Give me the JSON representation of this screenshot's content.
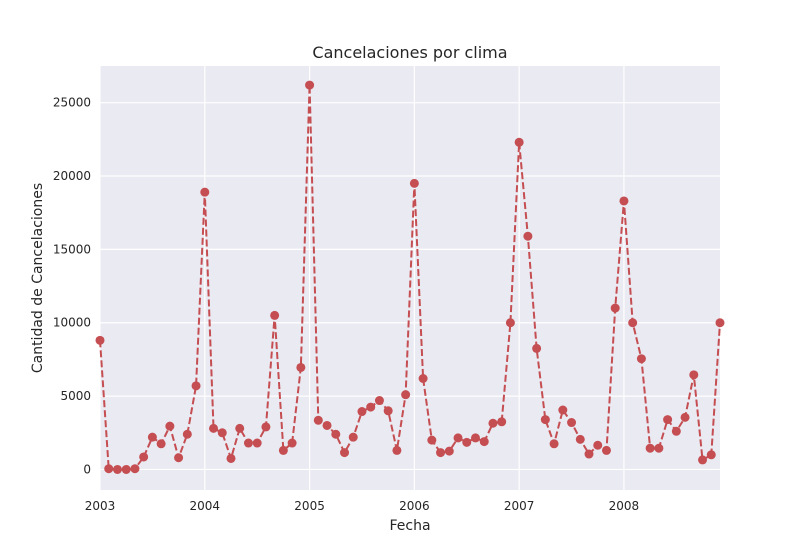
{
  "chart_data": {
    "type": "line",
    "title": "Cancelaciones por clima",
    "xlabel": "Fecha",
    "ylabel": "Cantidad de Cancelaciones",
    "x_axis": "date",
    "xlim": [
      "2003-01",
      "2008-12"
    ],
    "ylim": [
      -1400,
      27500
    ],
    "grid": true,
    "x_ticks": [
      {
        "date": "2003-01",
        "label": "2003"
      },
      {
        "date": "2004-01",
        "label": "2004"
      },
      {
        "date": "2005-01",
        "label": "2005"
      },
      {
        "date": "2006-01",
        "label": "2006"
      },
      {
        "date": "2007-01",
        "label": "2007"
      },
      {
        "date": "2008-01",
        "label": "2008"
      }
    ],
    "y_ticks": [
      0,
      5000,
      10000,
      15000,
      20000,
      25000
    ],
    "series": [
      {
        "color": "#c44e52",
        "linestyle": "dashed",
        "marker": "circle",
        "x": [
          "2003-01",
          "2003-02",
          "2003-03",
          "2003-04",
          "2003-05",
          "2003-06",
          "2003-07",
          "2003-08",
          "2003-09",
          "2003-10",
          "2003-11",
          "2003-12",
          "2004-01",
          "2004-02",
          "2004-03",
          "2004-04",
          "2004-05",
          "2004-06",
          "2004-07",
          "2004-08",
          "2004-09",
          "2004-10",
          "2004-11",
          "2004-12",
          "2005-01",
          "2005-02",
          "2005-03",
          "2005-04",
          "2005-05",
          "2005-06",
          "2005-07",
          "2005-08",
          "2005-09",
          "2005-10",
          "2005-11",
          "2005-12",
          "2006-01",
          "2006-02",
          "2006-03",
          "2006-04",
          "2006-05",
          "2006-06",
          "2006-07",
          "2006-08",
          "2006-09",
          "2006-10",
          "2006-11",
          "2006-12",
          "2007-01",
          "2007-02",
          "2007-03",
          "2007-04",
          "2007-05",
          "2007-06",
          "2007-07",
          "2007-08",
          "2007-09",
          "2007-10",
          "2007-11",
          "2007-12",
          "2008-01",
          "2008-02",
          "2008-03",
          "2008-04",
          "2008-05",
          "2008-06",
          "2008-07",
          "2008-08",
          "2008-09",
          "2008-10",
          "2008-11",
          "2008-12"
        ],
        "values": [
          8800,
          50,
          0,
          0,
          50,
          850,
          2200,
          1750,
          2950,
          800,
          2400,
          5700,
          18900,
          2800,
          2500,
          750,
          2800,
          1800,
          1800,
          2900,
          10500,
          1300,
          1800,
          6950,
          26200,
          3350,
          3000,
          2400,
          1150,
          2200,
          3950,
          4250,
          4700,
          4000,
          1300,
          5100,
          19500,
          6200,
          2000,
          1150,
          1250,
          2150,
          1850,
          2150,
          1900,
          3150,
          3250,
          10000,
          22300,
          15900,
          8250,
          3400,
          1750,
          4050,
          3200,
          2050,
          1050,
          1650,
          1300,
          11000,
          18300,
          10000,
          7550,
          1450,
          1450,
          3400,
          2600,
          3550,
          6450,
          650,
          1000,
          10000
        ]
      }
    ]
  }
}
